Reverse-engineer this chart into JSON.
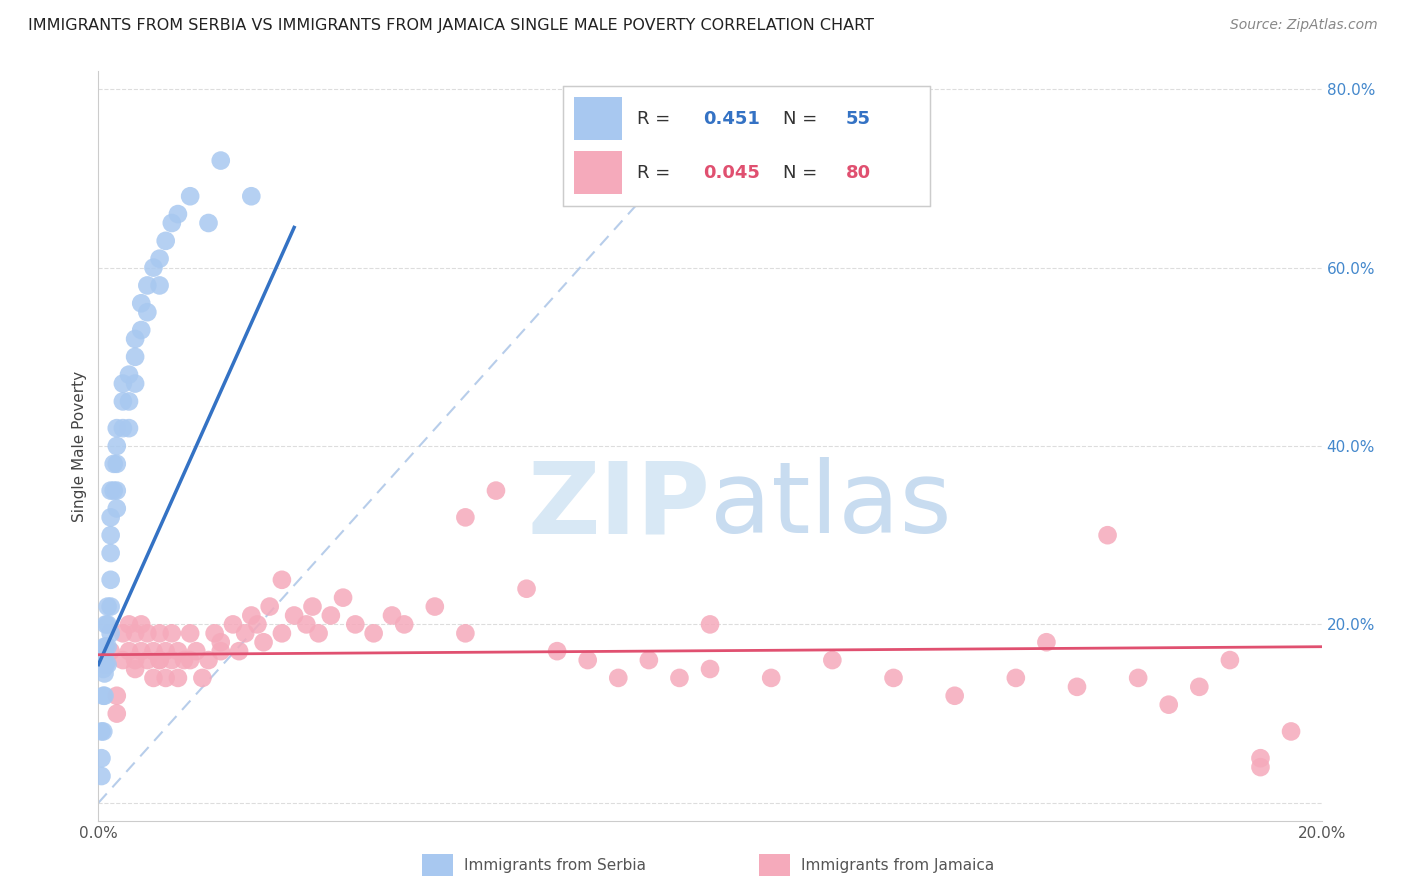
{
  "title": "IMMIGRANTS FROM SERBIA VS IMMIGRANTS FROM JAMAICA SINGLE MALE POVERTY CORRELATION CHART",
  "source": "Source: ZipAtlas.com",
  "xlabel_serbia": "Immigrants from Serbia",
  "xlabel_jamaica": "Immigrants from Jamaica",
  "ylabel": "Single Male Poverty",
  "xlim": [
    0.0,
    0.2
  ],
  "ylim": [
    -0.02,
    0.82
  ],
  "serbia_R": 0.451,
  "serbia_N": 55,
  "jamaica_R": 0.045,
  "jamaica_N": 80,
  "serbia_color": "#A8C8F0",
  "jamaica_color": "#F5AABB",
  "serbia_line_color": "#3472C4",
  "jamaica_line_color": "#E05070",
  "diag_line_color": "#B0C8E8",
  "background_color": "#FFFFFF",
  "grid_color": "#DDDDDD",
  "title_color": "#222222",
  "source_color": "#888888",
  "label_color": "#4488CC",
  "serbia_scatter_x": [
    0.0005,
    0.0005,
    0.0005,
    0.0008,
    0.0008,
    0.0008,
    0.001,
    0.001,
    0.001,
    0.001,
    0.001,
    0.0012,
    0.0012,
    0.0012,
    0.0015,
    0.0015,
    0.0015,
    0.0015,
    0.002,
    0.002,
    0.002,
    0.002,
    0.002,
    0.002,
    0.002,
    0.0025,
    0.0025,
    0.003,
    0.003,
    0.003,
    0.003,
    0.003,
    0.004,
    0.004,
    0.004,
    0.005,
    0.005,
    0.005,
    0.006,
    0.006,
    0.006,
    0.007,
    0.007,
    0.008,
    0.008,
    0.009,
    0.01,
    0.01,
    0.011,
    0.012,
    0.013,
    0.015,
    0.018,
    0.02,
    0.025
  ],
  "serbia_scatter_y": [
    0.08,
    0.05,
    0.03,
    0.15,
    0.12,
    0.08,
    0.175,
    0.165,
    0.155,
    0.145,
    0.12,
    0.2,
    0.175,
    0.155,
    0.22,
    0.2,
    0.175,
    0.155,
    0.35,
    0.32,
    0.3,
    0.28,
    0.25,
    0.22,
    0.19,
    0.38,
    0.35,
    0.42,
    0.4,
    0.38,
    0.35,
    0.33,
    0.47,
    0.45,
    0.42,
    0.48,
    0.45,
    0.42,
    0.52,
    0.5,
    0.47,
    0.56,
    0.53,
    0.58,
    0.55,
    0.6,
    0.61,
    0.58,
    0.63,
    0.65,
    0.66,
    0.68,
    0.65,
    0.72,
    0.68
  ],
  "serbia_line_x": [
    0.0,
    0.032
  ],
  "serbia_line_y": [
    0.155,
    0.645
  ],
  "jamaica_scatter_x": [
    0.002,
    0.003,
    0.004,
    0.004,
    0.005,
    0.005,
    0.006,
    0.006,
    0.007,
    0.007,
    0.008,
    0.008,
    0.009,
    0.009,
    0.01,
    0.01,
    0.011,
    0.011,
    0.012,
    0.012,
    0.013,
    0.013,
    0.014,
    0.015,
    0.015,
    0.016,
    0.017,
    0.018,
    0.019,
    0.02,
    0.022,
    0.023,
    0.024,
    0.025,
    0.026,
    0.027,
    0.028,
    0.03,
    0.032,
    0.034,
    0.035,
    0.036,
    0.038,
    0.04,
    0.042,
    0.045,
    0.048,
    0.05,
    0.055,
    0.06,
    0.065,
    0.07,
    0.075,
    0.08,
    0.085,
    0.09,
    0.095,
    0.1,
    0.11,
    0.12,
    0.13,
    0.14,
    0.15,
    0.155,
    0.16,
    0.165,
    0.17,
    0.175,
    0.18,
    0.185,
    0.19,
    0.195,
    0.003,
    0.006,
    0.01,
    0.02,
    0.03,
    0.06,
    0.1,
    0.19
  ],
  "jamaica_scatter_y": [
    0.17,
    0.12,
    0.19,
    0.16,
    0.2,
    0.17,
    0.19,
    0.16,
    0.2,
    0.17,
    0.19,
    0.16,
    0.17,
    0.14,
    0.19,
    0.16,
    0.17,
    0.14,
    0.19,
    0.16,
    0.17,
    0.14,
    0.16,
    0.19,
    0.16,
    0.17,
    0.14,
    0.16,
    0.19,
    0.18,
    0.2,
    0.17,
    0.19,
    0.21,
    0.2,
    0.18,
    0.22,
    0.19,
    0.21,
    0.2,
    0.22,
    0.19,
    0.21,
    0.23,
    0.2,
    0.19,
    0.21,
    0.2,
    0.22,
    0.19,
    0.35,
    0.24,
    0.17,
    0.16,
    0.14,
    0.16,
    0.14,
    0.15,
    0.14,
    0.16,
    0.14,
    0.12,
    0.14,
    0.18,
    0.13,
    0.3,
    0.14,
    0.11,
    0.13,
    0.16,
    0.04,
    0.08,
    0.1,
    0.15,
    0.16,
    0.17,
    0.25,
    0.32,
    0.2,
    0.05
  ],
  "jamaica_line_x": [
    0.0,
    0.2
  ],
  "jamaica_line_y": [
    0.166,
    0.175
  ],
  "diag_line_x": [
    0.0,
    0.105
  ],
  "diag_line_y": [
    0.0,
    0.8
  ]
}
